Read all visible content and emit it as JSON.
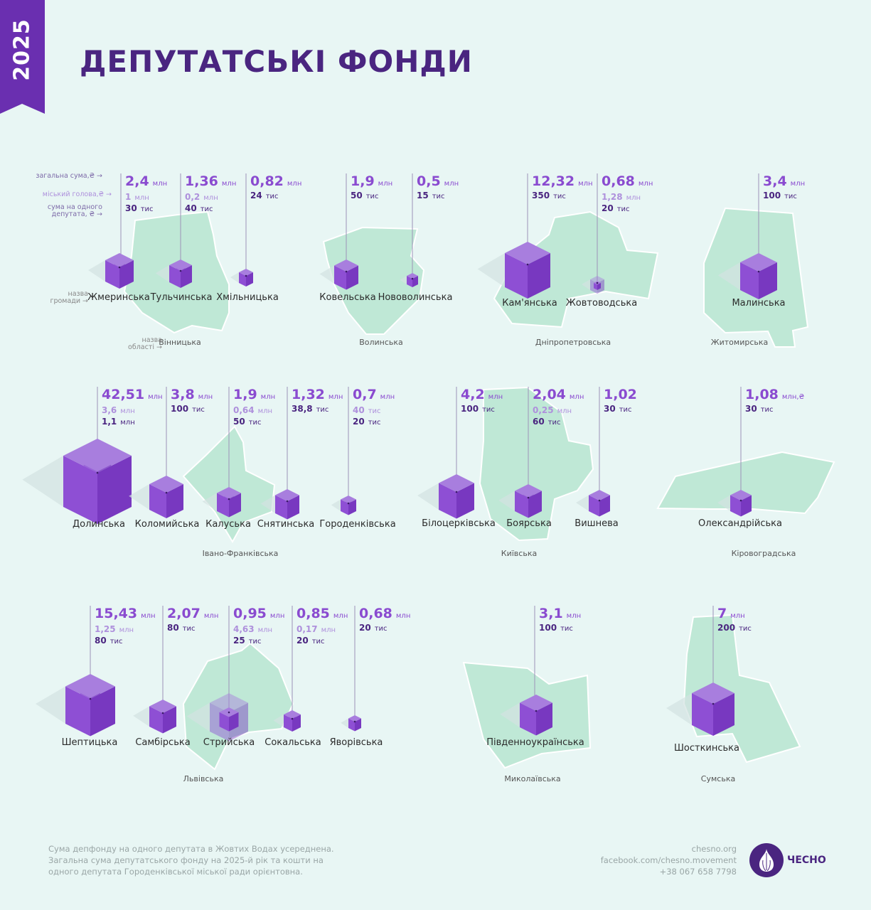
{
  "year": "2025",
  "title": "ДЕПУТАТСЬКІ ФОНДИ",
  "legend": {
    "total": "загальна сума,₴ →",
    "mayor": "міський голова,₴ →",
    "per_deputy": "сума на одного депутата, ₴ →",
    "community": "назва громади →",
    "region": "назва області →"
  },
  "colors": {
    "accent": "#8a4bd0",
    "dark": "#4a2580",
    "map": "#bfe8d6",
    "background": "#e8f6f4"
  },
  "regions": [
    {
      "name": "Вінницька",
      "communities": [
        {
          "name": "Жмеринська",
          "total": "2,4",
          "total_unit": "млн",
          "mayor": "1",
          "mayor_unit": "млн",
          "per_deputy": "30",
          "per_unit": "тис"
        },
        {
          "name": "Тульчинська",
          "total": "1,36",
          "total_unit": "млн",
          "mayor": "0,2",
          "mayor_unit": "млн",
          "per_deputy": "40",
          "per_unit": "тис"
        },
        {
          "name": "Хмільницька",
          "total": "0,82",
          "total_unit": "млн",
          "per_deputy": "24",
          "per_unit": "тис"
        }
      ]
    },
    {
      "name": "Волинська",
      "communities": [
        {
          "name": "Ковельська",
          "total": "1,9",
          "total_unit": "млн",
          "per_deputy": "50",
          "per_unit": "тис"
        },
        {
          "name": "Нововолинська",
          "total": "0,5",
          "total_unit": "млн",
          "per_deputy": "15",
          "per_unit": "тис"
        }
      ]
    },
    {
      "name": "Дніпропетровська",
      "communities": [
        {
          "name": "Кам'янська",
          "total": "12,32",
          "total_unit": "млн",
          "per_deputy": "350",
          "per_unit": "тис"
        },
        {
          "name": "Жовтоводська",
          "total": "0,68",
          "total_unit": "млн",
          "mayor": "1,28",
          "mayor_unit": "млн",
          "per_deputy": "20",
          "per_unit": "тис"
        }
      ]
    },
    {
      "name": "Житомирська",
      "communities": [
        {
          "name": "Малинська",
          "total": "3,4",
          "total_unit": "млн",
          "per_deputy": "100",
          "per_unit": "тис"
        }
      ]
    },
    {
      "name": "Івано-Франківська",
      "communities": [
        {
          "name": "Долинська",
          "total": "42,51",
          "total_unit": "млн",
          "mayor": "3,6",
          "mayor_unit": "млн",
          "per_deputy": "1,1",
          "per_unit": "млн"
        },
        {
          "name": "Коломийська",
          "total": "3,8",
          "total_unit": "млн",
          "per_deputy": "100",
          "per_unit": "тис"
        },
        {
          "name": "Калуська",
          "total": "1,9",
          "total_unit": "млн",
          "mayor": "0,64",
          "mayor_unit": "млн",
          "per_deputy": "50",
          "per_unit": "тис"
        },
        {
          "name": "Снятинська",
          "total": "1,32",
          "total_unit": "млн",
          "per_deputy": "38,8",
          "per_unit": "тис"
        },
        {
          "name": "Городенківська",
          "total": "0,7",
          "total_unit": "млн",
          "mayor": "40",
          "mayor_unit": "тис",
          "per_deputy": "20",
          "per_unit": "тис"
        }
      ]
    },
    {
      "name": "Київська",
      "communities": [
        {
          "name": "Білоцерківська",
          "total": "4,2",
          "total_unit": "млн",
          "per_deputy": "100",
          "per_unit": "тис"
        },
        {
          "name": "Боярська",
          "total": "2,04",
          "total_unit": "млн",
          "mayor": "0,25",
          "mayor_unit": "млн",
          "per_deputy": "60",
          "per_unit": "тис"
        },
        {
          "name": "Вишнева",
          "total": "1,02",
          "total_unit": "",
          "per_deputy": "30",
          "per_unit": "тис"
        }
      ]
    },
    {
      "name": "Кіровоградська",
      "communities": [
        {
          "name": "Олександрійська",
          "total": "1,08",
          "total_unit": "млн,₴",
          "per_deputy": "30",
          "per_unit": "тис"
        }
      ]
    },
    {
      "name": "Львівська",
      "communities": [
        {
          "name": "Шептицька",
          "total": "15,43",
          "total_unit": "млн",
          "mayor": "1,25",
          "mayor_unit": "млн",
          "per_deputy": "80",
          "per_unit": "тис"
        },
        {
          "name": "Самбірська",
          "total": "2,07",
          "total_unit": "млн",
          "per_deputy": "80",
          "per_unit": "тис"
        },
        {
          "name": "Стрийська",
          "total": "0,95",
          "total_unit": "млн",
          "mayor": "4,63",
          "mayor_unit": "млн",
          "per_deputy": "25",
          "per_unit": "тис"
        },
        {
          "name": "Сокальська",
          "total": "0,85",
          "total_unit": "млн",
          "mayor": "0,17",
          "mayor_unit": "млн",
          "per_deputy": "20",
          "per_unit": "тис"
        },
        {
          "name": "Яворівська",
          "total": "0,68",
          "total_unit": "млн",
          "per_deputy": "20",
          "per_unit": "тис"
        }
      ]
    },
    {
      "name": "Миколаївська",
      "communities": [
        {
          "name": "Південноукраїнська",
          "total": "3,1",
          "total_unit": "млн",
          "per_deputy": "100",
          "per_unit": "тис"
        }
      ]
    },
    {
      "name": "Сумська",
      "communities": [
        {
          "name": "Шосткинська",
          "total": "7",
          "total_unit": "млн",
          "per_deputy": "200",
          "per_unit": "тис"
        }
      ]
    }
  ],
  "footer": {
    "notes": [
      "Сума депфонду на одного депутата в Жовтих Водах усереднена.",
      "Загальна сума депутатського фонду на 2025-й рік та кошти на",
      "одного депутата Городенківської міської ради орієнтовна."
    ],
    "site": "chesno.org",
    "facebook": "facebook.com/chesno.movement",
    "phone": "+38 067 658 7798",
    "logo": "ЧЕСНО"
  }
}
